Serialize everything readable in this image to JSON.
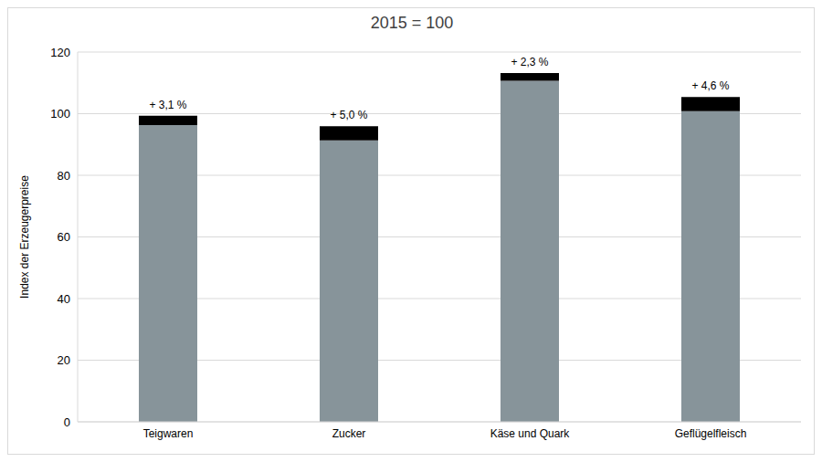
{
  "chart_data": {
    "type": "bar",
    "title": "2015 = 100",
    "y_label": "Index der Erzeugerpreise",
    "categories": [
      "Teigwaren",
      "Zucker",
      "Käse und Quark",
      "Geflügelfleisch"
    ],
    "series": [
      {
        "color": "#87949a",
        "values": [
          96.3,
          91.3,
          110.7,
          100.8
        ]
      },
      {
        "color": "#000000",
        "values": [
          3.0,
          4.6,
          2.5,
          4.6
        ]
      }
    ],
    "annotations": [
      "+ 3,1 %",
      "+ 5,0 %",
      "+ 2,3 %",
      "+ 4,6 %"
    ],
    "stacked": true,
    "ylim": [
      0,
      120
    ],
    "yticks": [
      0,
      20,
      40,
      60,
      80,
      100,
      120
    ],
    "grid": true
  }
}
